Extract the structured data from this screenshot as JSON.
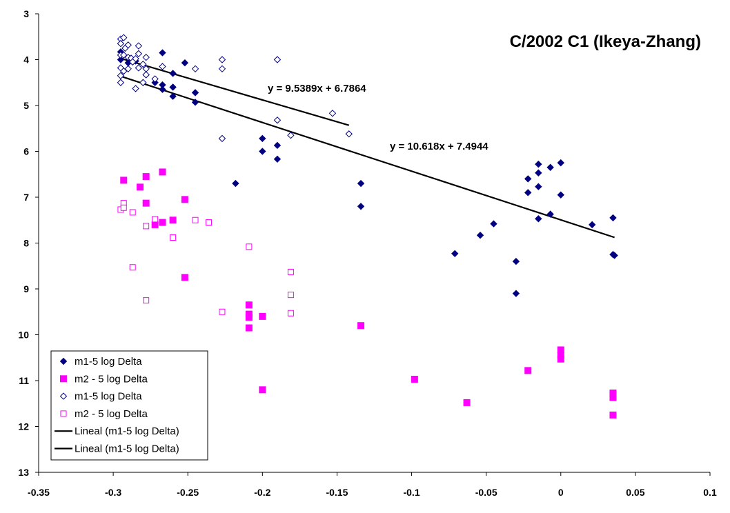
{
  "chart_data": {
    "type": "scatter",
    "title": "C/2002 C1 (Ikeya-Zhang)",
    "xlabel": "",
    "ylabel": "",
    "xlim": [
      -0.35,
      0.1
    ],
    "ylim": [
      3,
      13
    ],
    "y_reversed": true,
    "x_ticks": [
      "-0.35",
      "-0.3",
      "-0.25",
      "-0.2",
      "-0.15",
      "-0.1",
      "-0.05",
      "0",
      "0.05",
      "0.1"
    ],
    "x_tick_values": [
      -0.35,
      -0.3,
      -0.25,
      -0.2,
      -0.15,
      -0.1,
      -0.05,
      0,
      0.05,
      0.1
    ],
    "y_ticks": [
      "3",
      "4",
      "5",
      "6",
      "7",
      "8",
      "9",
      "10",
      "11",
      "12",
      "13"
    ],
    "y_tick_values": [
      3,
      4,
      5,
      6,
      7,
      8,
      9,
      10,
      11,
      12,
      13
    ],
    "grid": false,
    "legend_position": "bottom-left",
    "colors": {
      "navy": "#000080",
      "magenta": "#ff00ff",
      "trend": "#000000"
    },
    "series": [
      {
        "name": "m1-5 log Delta",
        "marker": "diamond-filled",
        "color": "#000080",
        "points": [
          [
            -0.295,
            3.83
          ],
          [
            -0.295,
            4.0
          ],
          [
            -0.29,
            4.07
          ],
          [
            -0.287,
            4.05
          ],
          [
            -0.285,
            4.03
          ],
          [
            -0.278,
            4.33
          ],
          [
            -0.272,
            4.5
          ],
          [
            -0.267,
            4.55
          ],
          [
            -0.267,
            4.65
          ],
          [
            -0.267,
            3.85
          ],
          [
            -0.26,
            4.3
          ],
          [
            -0.26,
            4.6
          ],
          [
            -0.26,
            4.8
          ],
          [
            -0.252,
            4.07
          ],
          [
            -0.245,
            4.72
          ],
          [
            -0.245,
            4.93
          ],
          [
            -0.218,
            6.7
          ],
          [
            -0.2,
            5.72
          ],
          [
            -0.2,
            6.0
          ],
          [
            -0.19,
            5.87
          ],
          [
            -0.19,
            6.17
          ],
          [
            -0.134,
            6.7
          ],
          [
            -0.134,
            7.2
          ],
          [
            -0.071,
            8.23
          ],
          [
            -0.054,
            7.83
          ],
          [
            -0.045,
            7.58
          ],
          [
            -0.03,
            8.4
          ],
          [
            -0.03,
            9.1
          ],
          [
            -0.022,
            6.6
          ],
          [
            -0.022,
            6.9
          ],
          [
            -0.015,
            6.28
          ],
          [
            -0.015,
            6.47
          ],
          [
            -0.015,
            6.77
          ],
          [
            -0.015,
            7.47
          ],
          [
            -0.007,
            6.35
          ],
          [
            -0.007,
            7.37
          ],
          [
            0.0,
            6.25
          ],
          [
            0.0,
            6.95
          ],
          [
            0.021,
            7.6
          ],
          [
            0.035,
            7.45
          ],
          [
            0.035,
            8.25
          ],
          [
            0.036,
            8.27
          ]
        ]
      },
      {
        "name": "m2 - 5 log Delta",
        "marker": "square-filled",
        "color": "#ff00ff",
        "points": [
          [
            -0.293,
            6.63
          ],
          [
            -0.282,
            6.78
          ],
          [
            -0.278,
            6.55
          ],
          [
            -0.278,
            7.13
          ],
          [
            -0.272,
            7.6
          ],
          [
            -0.267,
            6.45
          ],
          [
            -0.267,
            7.55
          ],
          [
            -0.26,
            7.5
          ],
          [
            -0.252,
            7.05
          ],
          [
            -0.252,
            8.75
          ],
          [
            -0.209,
            9.35
          ],
          [
            -0.209,
            9.55
          ],
          [
            -0.209,
            9.62
          ],
          [
            -0.209,
            9.85
          ],
          [
            -0.2,
            9.6
          ],
          [
            -0.2,
            11.2
          ],
          [
            -0.134,
            9.8
          ],
          [
            -0.098,
            10.97
          ],
          [
            -0.063,
            11.48
          ],
          [
            -0.022,
            10.78
          ],
          [
            0.0,
            10.33
          ],
          [
            0.0,
            10.45
          ],
          [
            0.0,
            10.53
          ],
          [
            0.035,
            11.27
          ],
          [
            0.035,
            11.37
          ],
          [
            0.035,
            11.75
          ]
        ]
      },
      {
        "name": "m1-5 log Delta",
        "marker": "diamond-open",
        "color": "#000080",
        "points": [
          [
            -0.295,
            3.55
          ],
          [
            -0.293,
            3.52
          ],
          [
            -0.295,
            3.65
          ],
          [
            -0.292,
            3.75
          ],
          [
            -0.29,
            3.68
          ],
          [
            -0.295,
            3.9
          ],
          [
            -0.293,
            3.9
          ],
          [
            -0.29,
            3.95
          ],
          [
            -0.288,
            3.97
          ],
          [
            -0.285,
            3.98
          ],
          [
            -0.283,
            3.7
          ],
          [
            -0.283,
            3.87
          ],
          [
            -0.278,
            3.95
          ],
          [
            -0.295,
            4.18
          ],
          [
            -0.293,
            4.25
          ],
          [
            -0.29,
            4.2
          ],
          [
            -0.295,
            4.35
          ],
          [
            -0.295,
            4.5
          ],
          [
            -0.287,
            4.05
          ],
          [
            -0.283,
            4.18
          ],
          [
            -0.28,
            4.1
          ],
          [
            -0.278,
            4.2
          ],
          [
            -0.278,
            4.33
          ],
          [
            -0.285,
            4.63
          ],
          [
            -0.28,
            4.5
          ],
          [
            -0.272,
            4.42
          ],
          [
            -0.267,
            4.15
          ],
          [
            -0.245,
            4.2
          ],
          [
            -0.227,
            4.0
          ],
          [
            -0.227,
            4.2
          ],
          [
            -0.227,
            5.72
          ],
          [
            -0.19,
            4.0
          ],
          [
            -0.19,
            5.32
          ],
          [
            -0.181,
            5.65
          ],
          [
            -0.153,
            5.17
          ],
          [
            -0.142,
            5.62
          ]
        ]
      },
      {
        "name": "m2 - 5 log Delta",
        "marker": "square-open",
        "color": "#ff00ff",
        "points": [
          [
            -0.295,
            7.27
          ],
          [
            -0.293,
            7.13
          ],
          [
            -0.293,
            7.23
          ],
          [
            -0.287,
            7.33
          ],
          [
            -0.287,
            8.53
          ],
          [
            -0.278,
            7.63
          ],
          [
            -0.278,
            9.25
          ],
          [
            -0.272,
            7.48
          ],
          [
            -0.26,
            7.88
          ],
          [
            -0.245,
            7.5
          ],
          [
            -0.236,
            7.55
          ],
          [
            -0.227,
            9.5
          ],
          [
            -0.209,
            8.08
          ],
          [
            -0.181,
            8.63
          ],
          [
            -0.181,
            9.13
          ],
          [
            -0.181,
            9.53
          ]
        ]
      }
    ],
    "trendlines": [
      {
        "name": "Lineal (m1-5 log Delta)",
        "slope": 9.5389,
        "intercept": 6.7864,
        "x_range": [
          -0.295,
          -0.142
        ],
        "equation": "y = 9.5389x + 6.7864"
      },
      {
        "name": "Lineal (m1-5 log Delta)",
        "slope": 10.618,
        "intercept": 7.4944,
        "x_range": [
          -0.295,
          0.036
        ],
        "equation": "y = 10.618x + 7.4944"
      }
    ]
  }
}
